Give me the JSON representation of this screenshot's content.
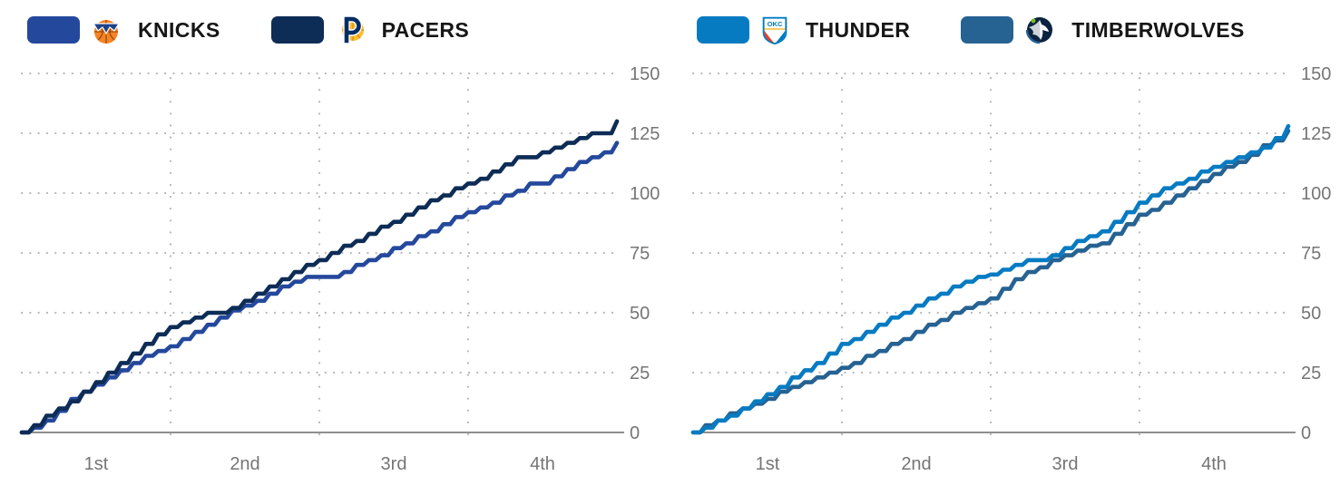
{
  "page": {
    "background": "#ffffff",
    "description": "NBA cumulative scoring progression charts"
  },
  "chart_data": [
    {
      "type": "line",
      "subtype": "cumulative-score-step",
      "matchup": "KNICKS vs PACERS",
      "legend": [
        {
          "team": "KNICKS",
          "color": "#24489C",
          "logo_icon": "knicks-logo"
        },
        {
          "team": "PACERS",
          "color": "#0D2C56",
          "logo_icon": "pacers-logo"
        }
      ],
      "x": {
        "labels": [
          "1st",
          "2nd",
          "3rd",
          "4th"
        ],
        "unit": "minute",
        "range": [
          0,
          48
        ]
      },
      "y": {
        "ticks": [
          0,
          25,
          50,
          75,
          100,
          125,
          150
        ],
        "range": [
          0,
          150
        ],
        "side": "right"
      },
      "grid": "dotted",
      "legend_position": "top",
      "series": [
        {
          "name": "KNICKS",
          "color": "#24489C",
          "final": 121,
          "values_by_minute": [
            0,
            2,
            5,
            9,
            14,
            17,
            20,
            23,
            26,
            29,
            32,
            34,
            36,
            39,
            42,
            45,
            48,
            51,
            53,
            55,
            58,
            61,
            63,
            65,
            65,
            65,
            67,
            70,
            72,
            74,
            77,
            79,
            82,
            84,
            87,
            90,
            92,
            94,
            96,
            99,
            101,
            104,
            104,
            107,
            110,
            113,
            115,
            117,
            121
          ]
        },
        {
          "name": "PACERS",
          "color": "#0D2C56",
          "final": 130,
          "values_by_minute": [
            0,
            3,
            7,
            10,
            13,
            17,
            21,
            25,
            29,
            33,
            37,
            41,
            44,
            46,
            48,
            50,
            50,
            52,
            55,
            58,
            61,
            64,
            67,
            70,
            72,
            75,
            78,
            80,
            83,
            86,
            88,
            91,
            94,
            97,
            99,
            102,
            104,
            106,
            109,
            112,
            115,
            115,
            117,
            119,
            121,
            123,
            125,
            125,
            130
          ]
        }
      ]
    },
    {
      "type": "line",
      "subtype": "cumulative-score-step",
      "matchup": "THUNDER vs TIMBERWOLVES",
      "legend": [
        {
          "team": "THUNDER",
          "color": "#067BC2",
          "logo_icon": "thunder-logo"
        },
        {
          "team": "TIMBERWOLVES",
          "color": "#266292",
          "logo_icon": "timberwolves-logo"
        }
      ],
      "x": {
        "labels": [
          "1st",
          "2nd",
          "3rd",
          "4th"
        ],
        "unit": "minute",
        "range": [
          0,
          48
        ]
      },
      "y": {
        "ticks": [
          0,
          25,
          50,
          75,
          100,
          125,
          150
        ],
        "range": [
          0,
          150
        ],
        "side": "right"
      },
      "grid": "dotted",
      "legend_position": "top",
      "series": [
        {
          "name": "TIMBERWOLVES",
          "color": "#266292",
          "final": 126,
          "values_by_minute": [
            0,
            3,
            5,
            8,
            10,
            12,
            14,
            17,
            19,
            21,
            23,
            25,
            27,
            29,
            32,
            34,
            37,
            39,
            42,
            45,
            47,
            50,
            52,
            54,
            56,
            60,
            64,
            67,
            69,
            72,
            74,
            76,
            78,
            79,
            83,
            87,
            91,
            93,
            96,
            99,
            102,
            105,
            108,
            111,
            113,
            116,
            120,
            122,
            126
          ]
        },
        {
          "name": "THUNDER",
          "color": "#067BC2",
          "final": 128,
          "values_by_minute": [
            0,
            2,
            5,
            7,
            10,
            13,
            16,
            19,
            23,
            26,
            29,
            33,
            37,
            39,
            42,
            45,
            48,
            50,
            53,
            56,
            58,
            61,
            63,
            65,
            66,
            68,
            70,
            72,
            72,
            74,
            77,
            80,
            82,
            84,
            88,
            92,
            96,
            99,
            102,
            104,
            106,
            109,
            111,
            113,
            115,
            117,
            119,
            123,
            128
          ]
        }
      ]
    }
  ],
  "style_tokens": {
    "grid_dot_color": "#b9b9b9",
    "baseline_color": "#8f8f8f",
    "tick_text_color": "#757575"
  }
}
